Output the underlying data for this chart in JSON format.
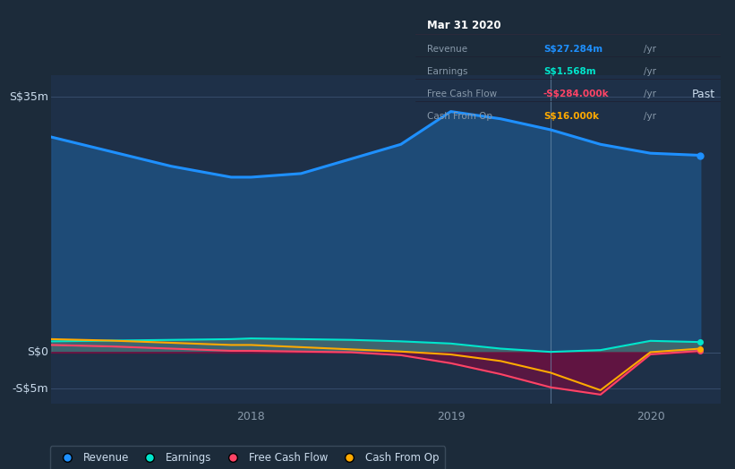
{
  "bg_color": "#1c2b3a",
  "plot_bg_color": "#1e3048",
  "grid_color": "#2a3f55",
  "ylabel_top": "S$35m",
  "ylabel_zero": "S$0",
  "ylabel_bottom": "-S$5m",
  "past_label": "Past",
  "tooltip": {
    "date": "Mar 31 2020",
    "rows": [
      {
        "label": "Revenue",
        "value": "S$27.284m",
        "unit": "/yr",
        "color": "#1e90ff"
      },
      {
        "label": "Earnings",
        "value": "S$1.568m",
        "unit": "/yr",
        "color": "#00e5cc"
      },
      {
        "label": "Free Cash Flow",
        "value": "-S$284.000k",
        "unit": "/yr",
        "color": "#ff4466"
      },
      {
        "label": "Cash From Op",
        "value": "S$16.000k",
        "unit": "/yr",
        "color": "#ffaa00"
      }
    ]
  },
  "x": [
    2017.0,
    2017.3,
    2017.6,
    2017.9,
    2018.0,
    2018.25,
    2018.5,
    2018.75,
    2019.0,
    2019.25,
    2019.5,
    2019.75,
    2020.0,
    2020.25
  ],
  "revenue": [
    29.5,
    27.5,
    25.5,
    24.0,
    24.0,
    24.5,
    26.5,
    28.5,
    33.0,
    32.0,
    30.5,
    28.5,
    27.284,
    27.0
  ],
  "earnings": [
    1.5,
    1.6,
    1.7,
    1.8,
    1.9,
    1.8,
    1.7,
    1.5,
    1.2,
    0.5,
    0.05,
    0.3,
    1.568,
    1.4
  ],
  "free_cash_flow": [
    1.0,
    0.8,
    0.5,
    0.2,
    0.2,
    0.1,
    0.0,
    -0.4,
    -1.5,
    -3.0,
    -4.8,
    -5.8,
    -0.284,
    0.2
  ],
  "cash_from_op": [
    1.8,
    1.6,
    1.3,
    1.0,
    1.0,
    0.7,
    0.4,
    0.1,
    -0.3,
    -1.2,
    -2.8,
    -5.2,
    0.016,
    0.5
  ],
  "revenue_color": "#1e90ff",
  "earnings_color": "#00e5cc",
  "fcf_color": "#ff4466",
  "cop_color": "#ffaa00",
  "revenue_fill": "#1e5080",
  "neg_fill": "#6b1040",
  "earnings_fill": "#5a7a6a",
  "divider_x": 2019.5,
  "ylim": [
    -7.0,
    38.0
  ],
  "xlim": [
    2017.0,
    2020.35
  ],
  "xticks": [
    2018.0,
    2019.0,
    2020.0
  ],
  "xtick_labels": [
    "2018",
    "2019",
    "2020"
  ],
  "legend_items": [
    {
      "label": "Revenue",
      "color": "#1e90ff"
    },
    {
      "label": "Earnings",
      "color": "#00e5cc"
    },
    {
      "label": "Free Cash Flow",
      "color": "#ff4466"
    },
    {
      "label": "Cash From Op",
      "color": "#ffaa00"
    }
  ]
}
